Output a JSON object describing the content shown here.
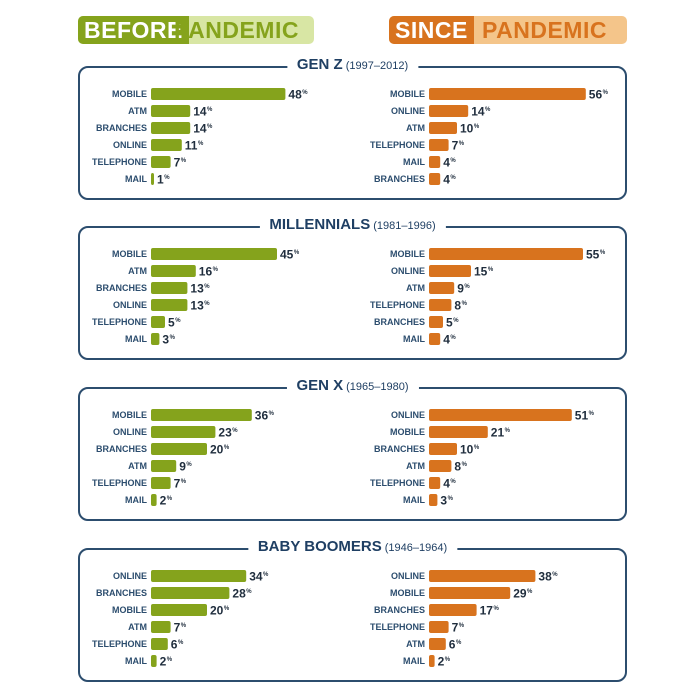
{
  "headers": {
    "before": {
      "strong": "BEFORE",
      "light": "PANDEMIC"
    },
    "since": {
      "strong": "SINCE",
      "light": "PANDEMIC"
    }
  },
  "colors": {
    "before": "#85a31c",
    "since": "#d8731e",
    "panel_border": "#2c4d6e",
    "category_text": "#2c4d6e"
  },
  "chart_data": [
    {
      "type": "bar",
      "orientation": "horizontal",
      "title": "GEN Z",
      "subtitle": "(1997–2012)",
      "unit": "%",
      "before": {
        "categories": [
          "MOBILE",
          "ATM",
          "BRANCHES",
          "ONLINE",
          "TELEPHONE",
          "MAIL"
        ],
        "values": [
          48,
          14,
          14,
          11,
          7,
          1
        ]
      },
      "since": {
        "categories": [
          "MOBILE",
          "ONLINE",
          "ATM",
          "TELEPHONE",
          "MAIL",
          "BRANCHES"
        ],
        "values": [
          56,
          14,
          10,
          7,
          4,
          4
        ]
      }
    },
    {
      "type": "bar",
      "orientation": "horizontal",
      "title": "MILLENNIALS",
      "subtitle": "(1981–1996)",
      "unit": "%",
      "before": {
        "categories": [
          "MOBILE",
          "ATM",
          "BRANCHES",
          "ONLINE",
          "TELEPHONE",
          "MAIL"
        ],
        "values": [
          45,
          16,
          13,
          13,
          5,
          3
        ]
      },
      "since": {
        "categories": [
          "MOBILE",
          "ONLINE",
          "ATM",
          "TELEPHONE",
          "BRANCHES",
          "MAIL"
        ],
        "values": [
          55,
          15,
          9,
          8,
          5,
          4
        ]
      }
    },
    {
      "type": "bar",
      "orientation": "horizontal",
      "title": "GEN X",
      "subtitle": "(1965–1980)",
      "unit": "%",
      "before": {
        "categories": [
          "MOBILE",
          "ONLINE",
          "BRANCHES",
          "ATM",
          "TELEPHONE",
          "MAIL"
        ],
        "values": [
          36,
          23,
          20,
          9,
          7,
          2
        ]
      },
      "since": {
        "categories": [
          "ONLINE",
          "MOBILE",
          "BRANCHES",
          "ATM",
          "TELEPHONE",
          "MAIL"
        ],
        "values": [
          51,
          21,
          10,
          8,
          4,
          3
        ]
      }
    },
    {
      "type": "bar",
      "orientation": "horizontal",
      "title": "BABY BOOMERS",
      "subtitle": "(1946–1964)",
      "unit": "%",
      "before": {
        "categories": [
          "ONLINE",
          "BRANCHES",
          "MOBILE",
          "ATM",
          "TELEPHONE",
          "MAIL"
        ],
        "values": [
          34,
          28,
          20,
          7,
          6,
          2
        ]
      },
      "since": {
        "categories": [
          "ONLINE",
          "MOBILE",
          "BRANCHES",
          "TELEPHONE",
          "ATM",
          "MAIL"
        ],
        "values": [
          38,
          29,
          17,
          7,
          6,
          2
        ]
      }
    }
  ]
}
